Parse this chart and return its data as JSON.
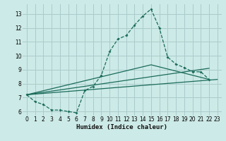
{
  "xlabel": "Humidex (Indice chaleur)",
  "bg_color": "#cceae7",
  "grid_color": "#aacccc",
  "line_color": "#1a6b5a",
  "xlim": [
    -0.5,
    23.5
  ],
  "ylim": [
    5.7,
    13.7
  ],
  "yticks": [
    6,
    7,
    8,
    9,
    10,
    11,
    12,
    13
  ],
  "xticks": [
    0,
    1,
    2,
    3,
    4,
    5,
    6,
    7,
    8,
    9,
    10,
    11,
    12,
    13,
    14,
    15,
    16,
    17,
    18,
    19,
    20,
    21,
    22,
    23
  ],
  "series1_x": [
    0,
    1,
    2,
    3,
    4,
    5,
    6,
    7,
    8,
    9,
    10,
    11,
    12,
    13,
    14,
    15,
    16,
    17,
    18,
    19,
    20,
    21,
    22
  ],
  "series1_y": [
    7.2,
    6.7,
    6.5,
    6.1,
    6.1,
    6.0,
    5.9,
    7.5,
    7.8,
    8.6,
    10.3,
    11.2,
    11.45,
    12.2,
    12.85,
    13.35,
    12.0,
    9.9,
    9.4,
    9.15,
    8.85,
    8.85,
    8.3
  ],
  "series2_x": [
    0,
    23
  ],
  "series2_y": [
    7.2,
    8.3
  ],
  "series3_x": [
    0,
    15,
    22
  ],
  "series3_y": [
    7.2,
    9.35,
    8.3
  ],
  "series4_x": [
    0,
    22
  ],
  "series4_y": [
    7.2,
    9.1
  ]
}
